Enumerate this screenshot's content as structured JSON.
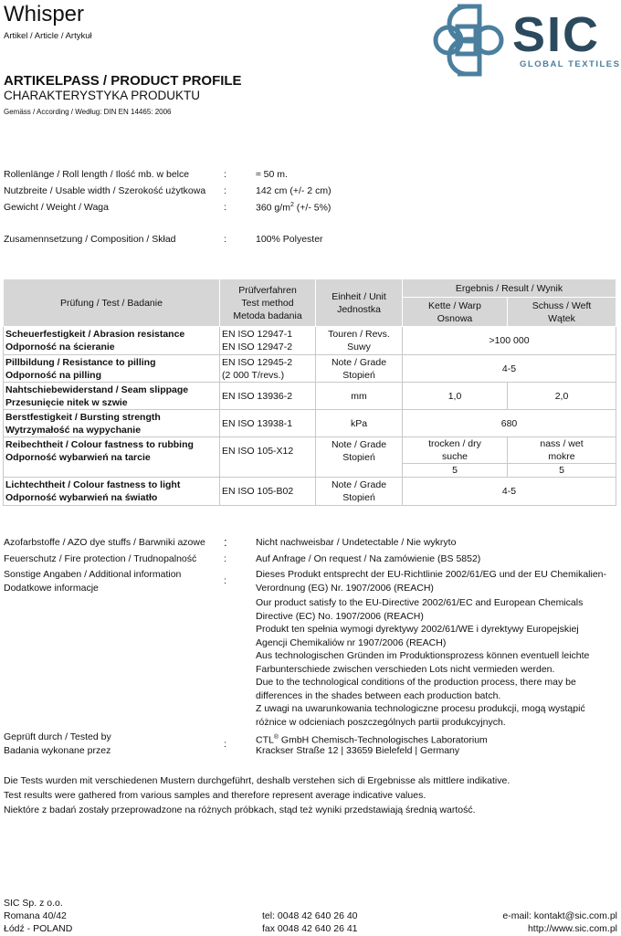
{
  "header": {
    "title": "Whisper",
    "subtitle": "Artikel / Article / Artykuł",
    "profile_title": "ARTIKELPASS / PRODUCT PROFILE",
    "profile_subtitle": "CHARAKTERYSTYKA PRODUKTU",
    "according": "Gemäss / According / Według: DIN EN 14465: 2006"
  },
  "logo": {
    "text": "SIC",
    "tagline": "GLOBAL TEXTILES",
    "color": "#4a7f9e",
    "text_color": "#2b4a5e"
  },
  "specs": [
    {
      "label": "Rollenlänge / Roll length / Ilość mb. w belce",
      "value": "≈ 50 m."
    },
    {
      "label": "Nutzbreite / Usable width / Szerokość użytkowa",
      "value": "142 cm (+/- 2 cm)"
    },
    {
      "label": "Gewicht / Weight / Waga",
      "value": "360 g/m",
      "sup": "2",
      "suffix": " (+/- 5%)"
    },
    {
      "label": "Zusamennsetzung / Composition / Skład",
      "value": "100% Polyester"
    }
  ],
  "table": {
    "headers": {
      "test": "Prüfung / Test / Badanie",
      "method": "Prüfverfahren\nTest method\nMetoda badania",
      "unit": "Einheit / Unit\nJednostka",
      "result": "Ergebnis / Result / Wynik",
      "warp": "Kette / Warp\nOsnowa",
      "weft": "Schuss / Weft\nWątek"
    },
    "rows": [
      {
        "test": "Scheuerfestigkeit / Abrasion resistance\nOdporność na ścieranie",
        "method": "EN ISO 12947-1\nEN ISO 12947-2",
        "unit": "Touren / Revs.\nSuwy",
        "result": ">100 000"
      },
      {
        "test": "Pillbildung / Resistance to pilling\nOdporność na pilling",
        "method": "EN ISO 12945-2\n(2 000 T/revs.)",
        "unit": "Note / Grade\nStopień",
        "result": "4-5"
      },
      {
        "test": "Nahtschiebewiderstand / Seam slippage\nPrzesunięcie nitek w szwie",
        "method": "EN ISO 13936-2",
        "unit": "mm",
        "warp": "1,0",
        "weft": "2,0"
      },
      {
        "test": "Berstfestigkeit / Bursting strength\nWytrzymałość na wypychanie",
        "method": "EN ISO 13938-1",
        "unit": "kPa",
        "result": "680"
      },
      {
        "test": "Reibechtheit / Colour fastness to rubbing\nOdporność wybarwień na tarcie",
        "method": "EN ISO 105-X12",
        "unit": "Note / Grade\nStopień",
        "dry_label": "trocken / dry\nsuche",
        "wet_label": "nass / wet\nmokre",
        "dry": "5",
        "wet": "5"
      },
      {
        "test": "Lichtechtheit / Colour fastness to light\nOdporność wybarwień na światło",
        "method": "EN ISO 105-B02",
        "unit": "Note / Grade\nStopień",
        "result": "4-5"
      }
    ]
  },
  "info": {
    "azo_label": "Azofarbstoffe / AZO dye stuffs / Barwniki azowe",
    "azo_value": "Nicht nachweisbar / Undetectable / Nie wykryto",
    "fire_label": "Feuerschutz / Fire protection / Trudnopalność",
    "fire_value": "Auf Anfrage / On request / Na zamówienie (BS 5852)",
    "other_label": "Sonstige Angaben / Additional information\nDodatkowe informacje",
    "other_values": [
      "Dieses Produkt entsprecht der EU-Richtlinie 2002/61/EG und der EU Chemikalien-\nVerordnung (EG) Nr. 1907/2006 (REACH)",
      "Our product satisfy to the EU-Directive 2002/61/EC and European Chemicals\nDirective (EC) No. 1907/2006 (REACH)",
      "Produkt ten spełnia wymogi dyrektywy 2002/61/WE i dyrektywy Europejskiej\nAgencji Chemikaliów nr 1907/2006 (REACH)",
      "Aus technologischen Gründen im Produktionsprozess können eventuell leichte\nFarbunterschiede zwischen verschieden Lots nicht vermieden werden.",
      "Due to the technological conditions of the production process, there may be\ndifferences in the shades between each production batch.",
      "Z uwagi na uwarunkowania technologiczne procesu produkcji, mogą wystąpić\nróżnice w odcieniach poszczególnych partii produkcyjnych."
    ],
    "tested_label": "Geprüft durch / Tested by\nBadania wykonane przez",
    "tested_value_a": "CTL",
    "tested_sup": "®",
    "tested_value_b": " GmbH Chemisch-Technologisches Laboratorium",
    "tested_address": "Krackser Straße 12 | 33659 Bielefeld | Germany"
  },
  "notes": [
    "Die Tests wurden mit verschiedenen Mustern durchgeführt, deshalb verstehen sich di Ergebnisse als mittlere indikative.",
    "Test results were gathered from various samples and therefore represent average indicative values.",
    "Niektóre z badań zostały przeprowadzone na różnych próbkach, stąd też wyniki przedstawiają średnią wartość."
  ],
  "footer": {
    "company": "SIC Sp. z o.o.",
    "street": "Romana 40/42",
    "city": "Łódź - POLAND",
    "tel": "tel: 0048 42 640 26 40",
    "fax": "fax 0048 42 640 26 41",
    "email": "e-mail: kontakt@sic.com.pl",
    "web": "http://www.sic.com.pl"
  }
}
